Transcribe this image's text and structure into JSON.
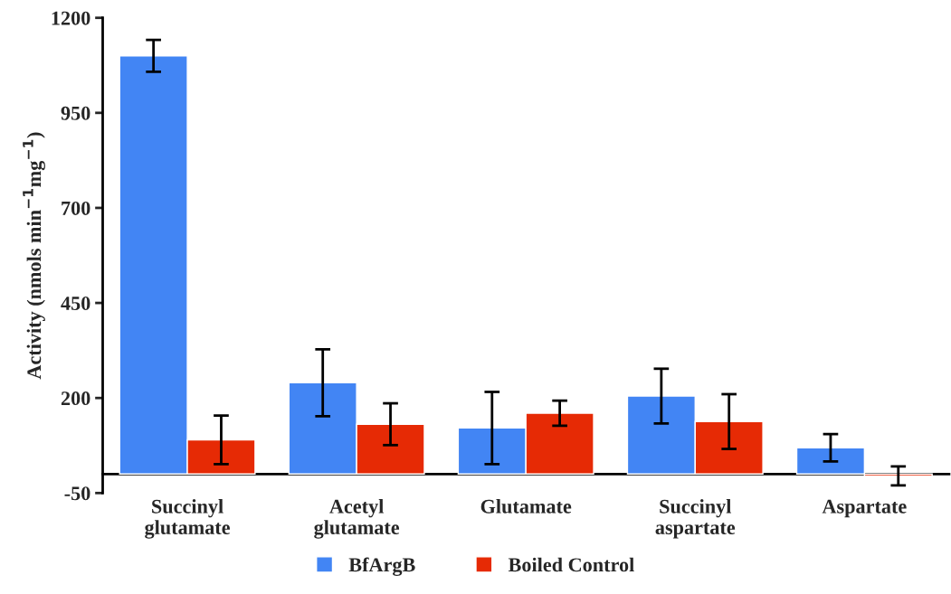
{
  "chart_data": {
    "type": "bar",
    "ylabel": "Activity (nmols min$^{−1}$mg$^{−1}$)",
    "categories": [
      "Succinyl\nglutamate",
      "Acetyl\nglutamate",
      "Glutamate",
      "Succinyl\naspartate",
      "Aspartate"
    ],
    "series": [
      {
        "name": "BfArgB",
        "color": "#4285f4",
        "values": [
          1100,
          240,
          121,
          205,
          69
        ],
        "errors": [
          42,
          88,
          95,
          72,
          36
        ]
      },
      {
        "name": "Boiled Control",
        "color": "#e62a05",
        "values": [
          90,
          131,
          160,
          138,
          -5
        ],
        "errors": [
          64,
          55,
          33,
          72,
          25
        ]
      }
    ],
    "ylim": [
      -50,
      1200
    ],
    "yticks": [
      1200,
      950,
      700,
      450,
      200,
      -50
    ],
    "grid": false,
    "legend": "bottom"
  }
}
